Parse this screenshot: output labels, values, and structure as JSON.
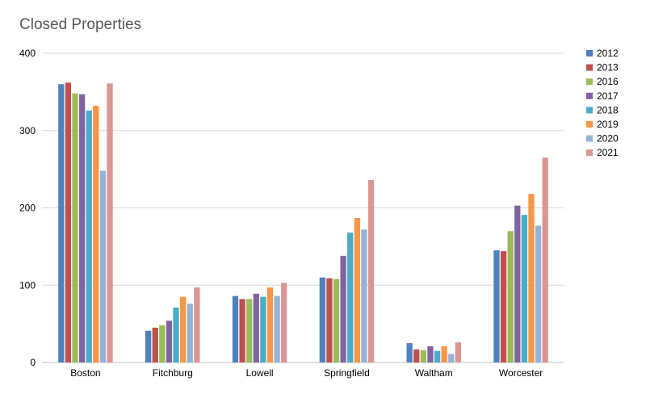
{
  "chart_data": {
    "type": "bar",
    "title": "Closed Properties",
    "xlabel": "",
    "ylabel": "",
    "ylim": [
      0,
      400
    ],
    "yticks": [
      0,
      100,
      200,
      300,
      400
    ],
    "grid": true,
    "legend_position": "right",
    "categories": [
      "Boston",
      "Fitchburg",
      "Lowell",
      "Springfield",
      "Waltham",
      "Worcester"
    ],
    "series": [
      {
        "name": "2012",
        "color": "#4F81BD",
        "values": [
          360,
          41,
          86,
          110,
          25,
          145
        ]
      },
      {
        "name": "2013",
        "color": "#C0504D",
        "values": [
          362,
          45,
          82,
          109,
          17,
          144
        ]
      },
      {
        "name": "2016",
        "color": "#9BBB59",
        "values": [
          348,
          48,
          82,
          108,
          16,
          170
        ]
      },
      {
        "name": "2017",
        "color": "#8064A2",
        "values": [
          347,
          54,
          89,
          138,
          21,
          203
        ]
      },
      {
        "name": "2018",
        "color": "#4BACC6",
        "values": [
          326,
          71,
          85,
          168,
          15,
          191
        ]
      },
      {
        "name": "2019",
        "color": "#F79646",
        "values": [
          332,
          85,
          97,
          187,
          21,
          218
        ]
      },
      {
        "name": "2020",
        "color": "#95B3D7",
        "values": [
          248,
          76,
          86,
          172,
          11,
          177
        ]
      },
      {
        "name": "2021",
        "color": "#D99694",
        "values": [
          361,
          97,
          103,
          236,
          26,
          265
        ]
      }
    ]
  }
}
